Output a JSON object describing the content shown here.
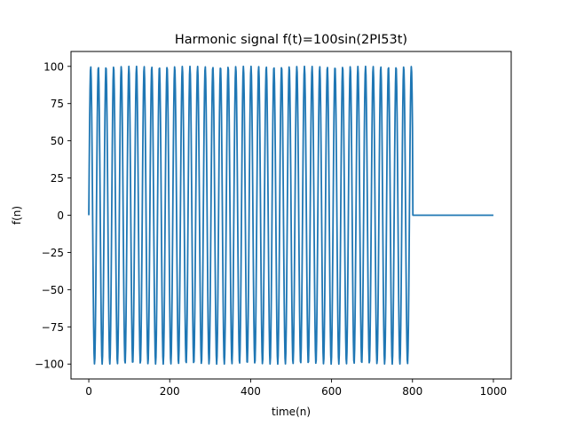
{
  "chart_data": {
    "type": "line",
    "title": "Harmonic signal f(t)=100sin(2PI53t)",
    "xlabel": "time(n)",
    "ylabel": "f(n)",
    "xlim": [
      -44,
      1044
    ],
    "ylim": [
      -110,
      110
    ],
    "xticks": [
      0,
      200,
      400,
      600,
      800,
      1000
    ],
    "xtick_labels": [
      "0",
      "200",
      "400",
      "600",
      "800",
      "1000"
    ],
    "yticks": [
      100,
      75,
      50,
      25,
      0,
      -25,
      -50,
      -75,
      -100
    ],
    "ytick_labels": [
      "100",
      "75",
      "50",
      "25",
      "0",
      "−25",
      "−50",
      "−75",
      "−100"
    ],
    "grid": false,
    "series": [
      {
        "color": "#1f77b4",
        "amplitude": 100,
        "frequency": 53,
        "sample_rate": 1000,
        "signal_end": 800,
        "x_end": 1000
      }
    ]
  }
}
